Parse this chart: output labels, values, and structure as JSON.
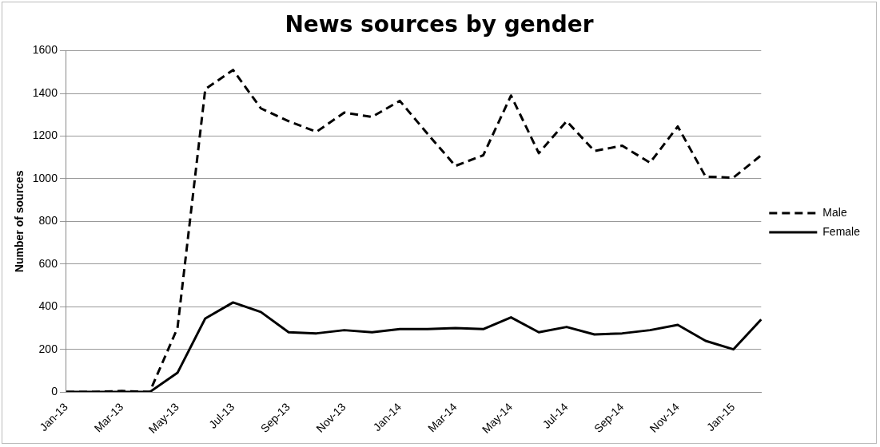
{
  "chart_data": {
    "type": "line",
    "title": "News sources by gender",
    "ylabel": "Number of sources",
    "categories": [
      "Jan-13",
      null,
      "Mar-13",
      null,
      "May-13",
      null,
      "Jul-13",
      null,
      "Sep-13",
      null,
      "Nov-13",
      null,
      "Jan-14",
      null,
      "Mar-14",
      null,
      "May-14",
      null,
      "Jul-14",
      null,
      "Sep-14",
      null,
      "Nov-14",
      null,
      "Jan-15",
      null
    ],
    "series": [
      {
        "name": "Male",
        "color": "#000000",
        "line_style": "dashed",
        "values": [
          0,
          0,
          5,
          0,
          300,
          1420,
          1510,
          1330,
          1270,
          1220,
          1310,
          1290,
          1365,
          1210,
          1060,
          1110,
          1390,
          1120,
          1270,
          1130,
          1155,
          1075,
          1245,
          1010,
          1005,
          1110
        ]
      },
      {
        "name": "Female",
        "color": "#000000",
        "line_style": "solid",
        "values": [
          0,
          0,
          0,
          0,
          90,
          345,
          420,
          375,
          280,
          275,
          290,
          280,
          295,
          295,
          300,
          295,
          350,
          280,
          305,
          270,
          275,
          290,
          315,
          240,
          200,
          340
        ]
      }
    ],
    "ylim": [
      0,
      1600
    ],
    "yticks": [
      0,
      200,
      400,
      600,
      800,
      1000,
      1200,
      1400,
      1600
    ],
    "grid": "y",
    "legend": "right",
    "marker": "none"
  }
}
